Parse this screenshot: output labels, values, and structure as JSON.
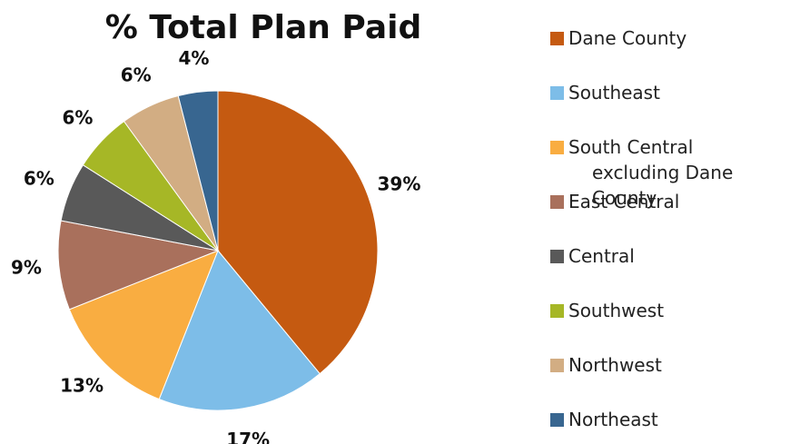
{
  "chart_data": {
    "type": "pie",
    "title": "% Total Plan Paid",
    "categories": [
      "Dane County",
      "Southeast",
      "South Central\nexcluding Dane County",
      "East Central",
      "Central",
      "Southwest",
      "Northwest",
      "Northeast"
    ],
    "values": [
      39,
      17,
      13,
      9,
      6,
      6,
      6,
      4
    ],
    "value_labels": [
      "39%",
      "17%",
      "13%",
      "9%",
      "6%",
      "6%",
      "6%",
      "4%"
    ],
    "colors": [
      "#c55a11",
      "#7dbde8",
      "#f9ad41",
      "#a9705c",
      "#595959",
      "#a6b726",
      "#d2ad83",
      "#386690"
    ]
  }
}
